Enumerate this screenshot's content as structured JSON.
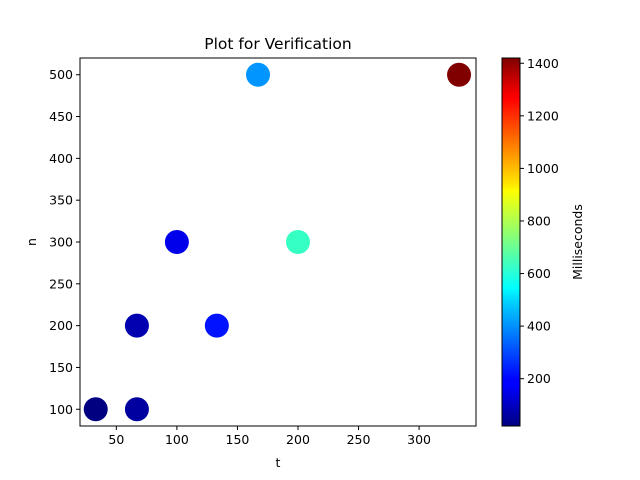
{
  "chart_data": {
    "type": "scatter",
    "title": "Plot for Verification",
    "xlabel": "t",
    "ylabel": "n",
    "xlim": [
      20,
      347
    ],
    "ylim": [
      80,
      520
    ],
    "xticks": [
      50,
      100,
      150,
      200,
      250,
      300
    ],
    "yticks": [
      100,
      150,
      200,
      250,
      300,
      350,
      400,
      450,
      500
    ],
    "colorbar": {
      "label": "Milliseconds",
      "colormap": "jet",
      "range": [
        20,
        1420
      ],
      "ticks": [
        200,
        400,
        600,
        800,
        1000,
        1200,
        1400
      ]
    },
    "grid": false,
    "points": [
      {
        "x": 33,
        "y": 100,
        "c": 20
      },
      {
        "x": 67,
        "y": 100,
        "c": 60
      },
      {
        "x": 67,
        "y": 200,
        "c": 80
      },
      {
        "x": 100,
        "y": 300,
        "c": 150
      },
      {
        "x": 133,
        "y": 200,
        "c": 220
      },
      {
        "x": 167,
        "y": 500,
        "c": 400
      },
      {
        "x": 200,
        "y": 300,
        "c": 600
      },
      {
        "x": 333,
        "y": 500,
        "c": 1420
      }
    ]
  }
}
